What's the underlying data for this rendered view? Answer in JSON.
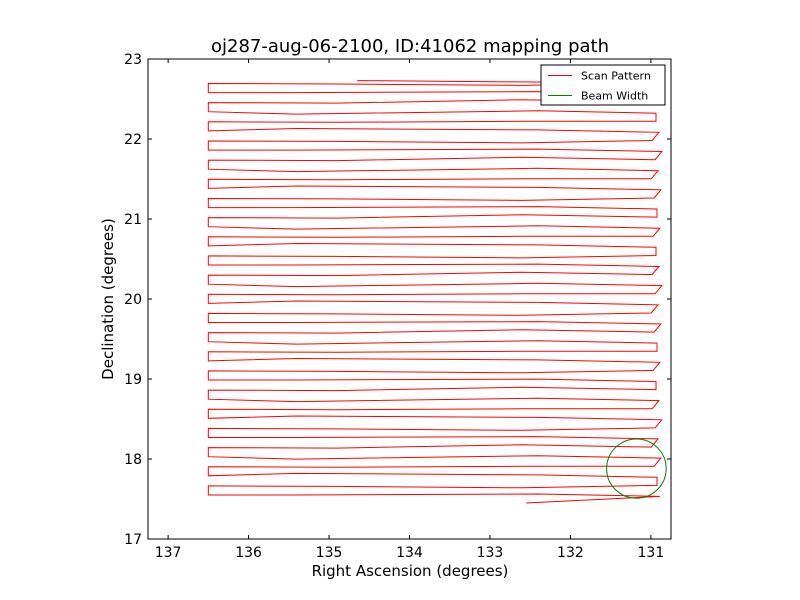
{
  "chart_data": {
    "type": "line",
    "title": "oj287-aug-06-2100, ID:41062 mapping path",
    "xlabel": "Right Ascension (degrees)",
    "ylabel": "Declination (degrees)",
    "xlim": [
      137.25,
      130.75
    ],
    "ylim": [
      17,
      23
    ],
    "x_ticks": [
      137,
      136,
      135,
      134,
      133,
      132,
      131
    ],
    "y_ticks": [
      17,
      18,
      19,
      20,
      21,
      22,
      23
    ],
    "x_tick_labels": [
      "137",
      "136",
      "135",
      "134",
      "133",
      "132",
      "131"
    ],
    "y_tick_labels": [
      "17",
      "18",
      "19",
      "20",
      "21",
      "22",
      "23"
    ],
    "grid": false,
    "legend_position": "top-right",
    "series": [
      {
        "name": "Scan Pattern",
        "color": "#ff0000",
        "style": "raster-scan",
        "ra_range": [
          130.9,
          136.5
        ],
        "dec_range": [
          17.55,
          22.7
        ],
        "row_count": 44,
        "start_point": [
          134.65,
          22.73
        ],
        "end_point": [
          132.55,
          17.45
        ]
      },
      {
        "name": "Beam Width",
        "color": "#008000",
        "shape": "circle",
        "center": [
          131.18,
          17.88
        ],
        "radius_deg": 0.37
      }
    ]
  }
}
